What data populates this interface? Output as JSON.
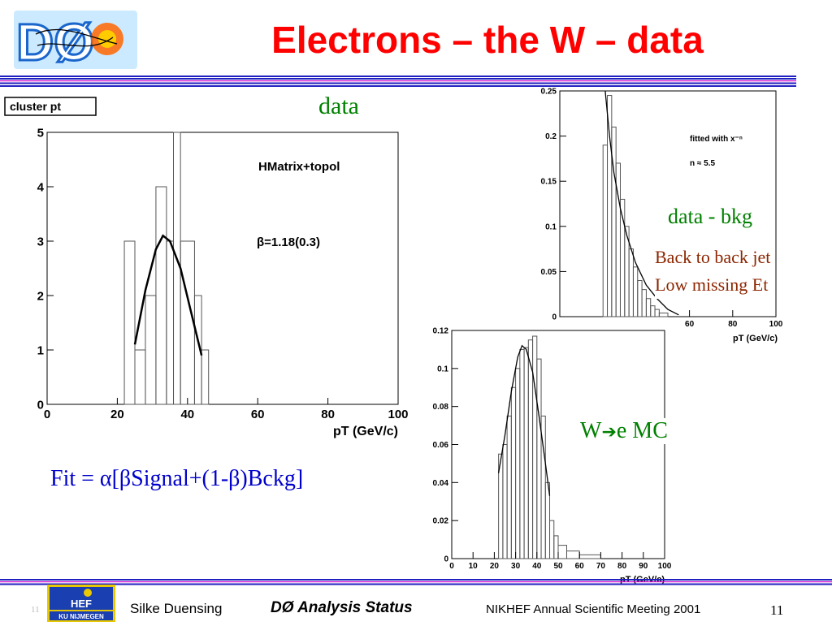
{
  "header": {
    "title": "Electrons – the W – data",
    "logo_text": "DØ"
  },
  "left_plot": {
    "label": "cluster pt",
    "annotation_top": "HMatrix+topol",
    "annotation_beta": "β=1.18(0.3)",
    "overlay_label": "data"
  },
  "right_top_plot": {
    "fit_label": "fitted with x⁻ⁿ",
    "fit_value": "n ≈ 5.5",
    "overlay_label": "data - bkg",
    "note_line1": "Back to back jet",
    "note_line2": "Low missing Et"
  },
  "right_bottom_plot": {
    "overlay_label_prefix": "W",
    "overlay_label_suffix": "e MC"
  },
  "fit_formula": "Fit = α[βSignal+(1-β)Bckg]",
  "footer": {
    "author": "Silke Duensing",
    "talk": "DØ Analysis Status",
    "meeting": "NIKHEF Annual Scientific Meeting 2001",
    "page": "11",
    "small_page": "11",
    "institute_top": "HEF",
    "institute_bottom": "KU NIJMEGEN"
  },
  "colors": {
    "title": "#ff0000",
    "green": "#008000",
    "brown": "#8b2500",
    "blue_text": "#0000cc",
    "rule": "#2020c0",
    "rule_accent": "#cc00cc"
  },
  "chart_data": [
    {
      "type": "bar",
      "name": "cluster pt",
      "xlabel": "pT (GeV/c)",
      "xlim": [
        0,
        100
      ],
      "ylim": [
        0,
        5
      ],
      "xticks": [
        "0",
        "20",
        "40",
        "60",
        "80",
        "100"
      ],
      "yticks": [
        "0",
        "1",
        "2",
        "3",
        "4",
        "5"
      ],
      "histogram_bins": [
        {
          "x0": 22,
          "x1": 25,
          "y": 3
        },
        {
          "x0": 25,
          "x1": 28,
          "y": 1
        },
        {
          "x0": 28,
          "x1": 31,
          "y": 2
        },
        {
          "x0": 31,
          "x1": 34,
          "y": 4
        },
        {
          "x0": 34,
          "x1": 36,
          "y": 3
        },
        {
          "x0": 36,
          "x1": 38,
          "y": 5
        },
        {
          "x0": 38,
          "x1": 42,
          "y": 3
        },
        {
          "x0": 42,
          "x1": 44,
          "y": 2
        },
        {
          "x0": 44,
          "x1": 46,
          "y": 1
        }
      ],
      "fit_curve": [
        [
          25,
          1.1
        ],
        [
          28,
          2.1
        ],
        [
          31,
          2.85
        ],
        [
          33,
          3.1
        ],
        [
          35,
          3.0
        ],
        [
          38,
          2.5
        ],
        [
          41,
          1.7
        ],
        [
          44,
          0.9
        ]
      ]
    },
    {
      "type": "bar",
      "name": "data - bkg",
      "xlabel": "pT (GeV/c)",
      "xlim": [
        0,
        100
      ],
      "ylim": [
        0,
        0.25
      ],
      "xticks": [
        "60",
        "80",
        "100"
      ],
      "yticks": [
        "0",
        "0.05",
        "0.1",
        "0.15",
        "0.2",
        "0.25"
      ],
      "histogram_bins": [
        {
          "x0": 20,
          "x1": 22,
          "y": 0.19
        },
        {
          "x0": 22,
          "x1": 24,
          "y": 0.245
        },
        {
          "x0": 24,
          "x1": 26,
          "y": 0.21
        },
        {
          "x0": 26,
          "x1": 28,
          "y": 0.17
        },
        {
          "x0": 28,
          "x1": 30,
          "y": 0.13
        },
        {
          "x0": 30,
          "x1": 32,
          "y": 0.1
        },
        {
          "x0": 32,
          "x1": 34,
          "y": 0.075
        },
        {
          "x0": 34,
          "x1": 36,
          "y": 0.055
        },
        {
          "x0": 36,
          "x1": 38,
          "y": 0.04
        },
        {
          "x0": 38,
          "x1": 40,
          "y": 0.03
        },
        {
          "x0": 40,
          "x1": 42,
          "y": 0.02
        },
        {
          "x0": 42,
          "x1": 44,
          "y": 0.012
        },
        {
          "x0": 44,
          "x1": 46,
          "y": 0.008
        },
        {
          "x0": 46,
          "x1": 50,
          "y": 0.004
        }
      ],
      "fit_curve": [
        [
          21,
          0.25
        ],
        [
          23,
          0.2
        ],
        [
          25,
          0.16
        ],
        [
          28,
          0.12
        ],
        [
          31,
          0.09
        ],
        [
          35,
          0.06
        ],
        [
          40,
          0.035
        ],
        [
          45,
          0.02
        ],
        [
          50,
          0.008
        ],
        [
          55,
          0.002
        ]
      ]
    },
    {
      "type": "bar",
      "name": "W→e MC",
      "xlabel": "pT (GeV/c)",
      "xlim": [
        0,
        100
      ],
      "ylim": [
        0,
        0.12
      ],
      "xticks": [
        "0",
        "10",
        "20",
        "30",
        "40",
        "50",
        "60",
        "70",
        "80",
        "90",
        "100"
      ],
      "yticks": [
        "0",
        "0.02",
        "0.04",
        "0.06",
        "0.08",
        "0.1",
        "0.12"
      ],
      "histogram_bins": [
        {
          "x0": 22,
          "x1": 24,
          "y": 0.055
        },
        {
          "x0": 24,
          "x1": 26,
          "y": 0.06
        },
        {
          "x0": 26,
          "x1": 28,
          "y": 0.075
        },
        {
          "x0": 28,
          "x1": 30,
          "y": 0.09
        },
        {
          "x0": 30,
          "x1": 32,
          "y": 0.1
        },
        {
          "x0": 32,
          "x1": 34,
          "y": 0.11
        },
        {
          "x0": 34,
          "x1": 36,
          "y": 0.111
        },
        {
          "x0": 36,
          "x1": 38,
          "y": 0.115
        },
        {
          "x0": 38,
          "x1": 40,
          "y": 0.117
        },
        {
          "x0": 40,
          "x1": 42,
          "y": 0.105
        },
        {
          "x0": 42,
          "x1": 44,
          "y": 0.075
        },
        {
          "x0": 44,
          "x1": 46,
          "y": 0.04
        },
        {
          "x0": 46,
          "x1": 48,
          "y": 0.02
        },
        {
          "x0": 48,
          "x1": 50,
          "y": 0.012
        },
        {
          "x0": 50,
          "x1": 54,
          "y": 0.007
        },
        {
          "x0": 54,
          "x1": 60,
          "y": 0.004
        },
        {
          "x0": 60,
          "x1": 70,
          "y": 0.002
        }
      ],
      "fit_curve": [
        [
          22,
          0.045
        ],
        [
          25,
          0.065
        ],
        [
          28,
          0.088
        ],
        [
          31,
          0.106
        ],
        [
          33,
          0.112
        ],
        [
          35,
          0.11
        ],
        [
          38,
          0.098
        ],
        [
          41,
          0.075
        ],
        [
          44,
          0.05
        ],
        [
          46,
          0.033
        ]
      ]
    }
  ]
}
